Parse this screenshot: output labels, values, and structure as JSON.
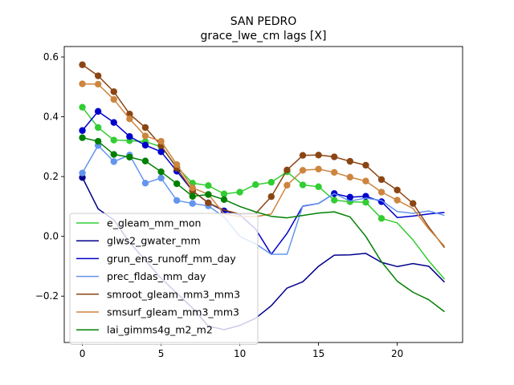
{
  "chart_data": {
    "type": "line",
    "title": "SAN PEDRO",
    "subtitle": "grace_lwe_cm lags [X]",
    "xlabel": "",
    "ylabel": "",
    "xlim": [
      -1.15,
      24.15
    ],
    "ylim": [
      -0.355,
      0.635
    ],
    "xticks": [
      0,
      5,
      10,
      15,
      20
    ],
    "yticks": [
      -0.2,
      0.0,
      0.2,
      0.4,
      0.6
    ],
    "ytick_labels": [
      "−0.2",
      "0.0",
      "0.2",
      "0.4",
      "0.6"
    ],
    "legend_position": "lower-left",
    "grid": false,
    "series": [
      {
        "name": "e_gleam_mm_mon",
        "color": "#32cd32",
        "x": [
          0,
          1,
          2,
          3,
          4,
          5,
          6,
          7,
          8,
          9,
          10,
          11,
          12,
          13,
          14,
          15,
          16,
          17,
          18,
          19,
          20,
          21,
          22,
          23
        ],
        "values": [
          0.432,
          0.364,
          0.322,
          0.32,
          0.317,
          0.3,
          0.232,
          0.178,
          0.17,
          0.142,
          0.148,
          0.173,
          0.181,
          0.216,
          0.172,
          0.166,
          0.121,
          0.116,
          0.114,
          0.06,
          0.045,
          -0.012,
          -0.082,
          -0.143
        ],
        "marker_x": [
          0,
          1,
          2,
          3,
          4,
          5,
          6,
          7,
          8,
          9,
          10,
          11,
          12,
          13,
          14,
          15,
          16,
          17,
          18,
          19
        ]
      },
      {
        "name": "glws2_gwater_mm",
        "color": "#00008b",
        "x": [
          0,
          1,
          2,
          3,
          4,
          5,
          6,
          7,
          8,
          9,
          10,
          11,
          12,
          13,
          14,
          15,
          16,
          17,
          18,
          19,
          20,
          21,
          22,
          23
        ],
        "values": [
          0.197,
          0.092,
          0.055,
          -0.02,
          -0.08,
          -0.14,
          -0.19,
          -0.24,
          -0.3,
          -0.312,
          -0.298,
          -0.274,
          -0.232,
          -0.173,
          -0.152,
          -0.1,
          -0.063,
          -0.062,
          -0.057,
          -0.087,
          -0.101,
          -0.091,
          -0.1,
          -0.153
        ],
        "marker_x": [
          0
        ]
      },
      {
        "name": "grun_ens_runoff_mm_day",
        "color": "#0000cd",
        "x": [
          0,
          1,
          2,
          3,
          4,
          5,
          6,
          7,
          8,
          9,
          10,
          11,
          12,
          13,
          14,
          15,
          16,
          17,
          18,
          19,
          20,
          21,
          22,
          23
        ],
        "values": [
          0.354,
          0.418,
          0.381,
          0.334,
          0.305,
          0.283,
          0.218,
          0.152,
          0.112,
          0.085,
          0.072,
          0.025,
          -0.06,
          0.01,
          0.101,
          0.11,
          0.143,
          0.131,
          0.134,
          0.116,
          0.063,
          0.068,
          0.075,
          0.08
        ],
        "marker_x": [
          0,
          1,
          2,
          3,
          4,
          5,
          6,
          7,
          8,
          9,
          16,
          17,
          18,
          19
        ]
      },
      {
        "name": "prec_fldas_mm_day",
        "color": "#6495ed",
        "x": [
          0,
          1,
          2,
          3,
          4,
          5,
          6,
          7,
          8,
          9,
          10,
          11,
          12,
          13,
          14,
          15,
          16,
          17,
          18,
          19,
          20,
          21,
          22,
          23
        ],
        "values": [
          0.212,
          0.304,
          0.25,
          0.272,
          0.178,
          0.195,
          0.12,
          0.11,
          0.102,
          0.065,
          0.0,
          -0.025,
          -0.06,
          -0.06,
          0.102,
          0.11,
          0.143,
          0.118,
          0.128,
          0.12,
          0.083,
          0.077,
          0.085,
          0.07
        ],
        "marker_x": [
          0,
          1,
          2,
          3,
          4,
          5,
          6,
          7,
          8
        ]
      },
      {
        "name": "smroot_gleam_mm3_mm3",
        "color": "#8b4513",
        "x": [
          0,
          1,
          2,
          3,
          4,
          5,
          6,
          7,
          8,
          9,
          10,
          11,
          12,
          13,
          14,
          15,
          16,
          17,
          18,
          19,
          20,
          21,
          22,
          23
        ],
        "values": [
          0.574,
          0.537,
          0.484,
          0.409,
          0.364,
          0.304,
          0.228,
          0.152,
          0.112,
          0.088,
          0.075,
          0.076,
          0.133,
          0.222,
          0.271,
          0.272,
          0.266,
          0.251,
          0.238,
          0.19,
          0.155,
          0.11,
          0.031,
          -0.038
        ],
        "marker_x": [
          0,
          1,
          2,
          3,
          4,
          5,
          6,
          7,
          8,
          12,
          13,
          14,
          15,
          16,
          17,
          18,
          19,
          20,
          21
        ]
      },
      {
        "name": "smsurf_gleam_mm3_mm3",
        "color": "#cd853f",
        "x": [
          0,
          1,
          2,
          3,
          4,
          5,
          6,
          7,
          8,
          9,
          10,
          11,
          12,
          13,
          14,
          15,
          16,
          17,
          18,
          19,
          20,
          21,
          22,
          23
        ],
        "values": [
          0.51,
          0.509,
          0.458,
          0.393,
          0.336,
          0.318,
          0.24,
          0.162,
          0.141,
          0.075,
          0.066,
          0.066,
          0.075,
          0.171,
          0.221,
          0.225,
          0.214,
          0.198,
          0.185,
          0.148,
          0.121,
          0.093,
          0.025,
          -0.033
        ],
        "marker_x": [
          0,
          1,
          2,
          3,
          4,
          5,
          6,
          7,
          13,
          14,
          15,
          16,
          17,
          18,
          19,
          20
        ]
      },
      {
        "name": "lai_gimms4g_m2_m2",
        "color": "#008000",
        "x": [
          0,
          1,
          2,
          3,
          4,
          5,
          6,
          7,
          8,
          9,
          10,
          11,
          12,
          13,
          14,
          15,
          16,
          17,
          18,
          19,
          20,
          21,
          22,
          23
        ],
        "values": [
          0.33,
          0.318,
          0.274,
          0.265,
          0.252,
          0.216,
          0.176,
          0.134,
          0.14,
          0.123,
          0.1,
          0.082,
          0.067,
          0.062,
          0.07,
          0.078,
          0.082,
          0.065,
          0.0,
          -0.085,
          -0.15,
          -0.187,
          -0.212,
          -0.252
        ],
        "marker_x": [
          0,
          1,
          2,
          3,
          4,
          5,
          6,
          7,
          8,
          9
        ]
      }
    ]
  }
}
